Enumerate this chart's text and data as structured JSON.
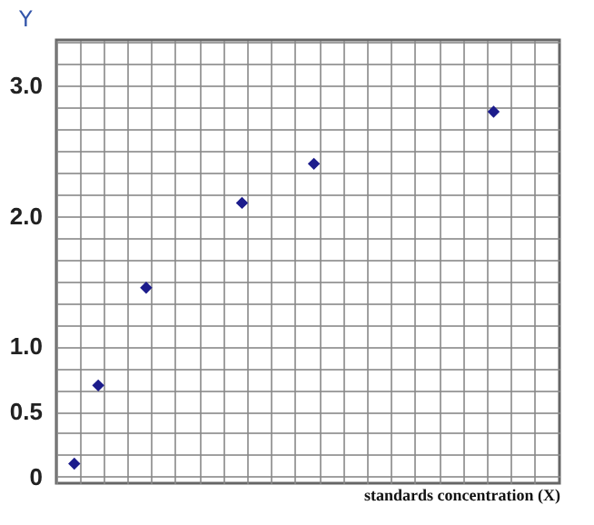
{
  "chart_data": {
    "type": "scatter",
    "xlabel": "standards concentration (X)",
    "ylabel": "Y",
    "categories": [
      null,
      null,
      null,
      null,
      null,
      null,
      null,
      null,
      null,
      null,
      null,
      null,
      null,
      null,
      null,
      null,
      null,
      null,
      null,
      null,
      null,
      null,
      null,
      null,
      null,
      null,
      null,
      null,
      null,
      null,
      null,
      null,
      null,
      null,
      null,
      null,
      null,
      null,
      null,
      null,
      null,
      null
    ],
    "series": [
      {
        "color": "#1c1c8c",
        "values": [
          null,
          0.1,
          null,
          0.7,
          null,
          null,
          null,
          1.45,
          null,
          null,
          null,
          null,
          null,
          null,
          null,
          2.1,
          null,
          null,
          null,
          null,
          null,
          2.4,
          null,
          null,
          null,
          null,
          null,
          null,
          null,
          null,
          null,
          null,
          null,
          null,
          null,
          null,
          2.8,
          null,
          null,
          null,
          null,
          null
        ]
      }
    ],
    "ylim": [
      -0.05,
      3.35
    ],
    "yticks": [
      {
        "value": 0,
        "label": "0"
      },
      0.5,
      {
        "value": 1,
        "label": "1.0"
      },
      {
        "value": 2,
        "label": "2.0"
      },
      {
        "value": 3,
        "label": "3.0"
      }
    ],
    "grid": true,
    "marker": "diamond",
    "legend": false
  }
}
